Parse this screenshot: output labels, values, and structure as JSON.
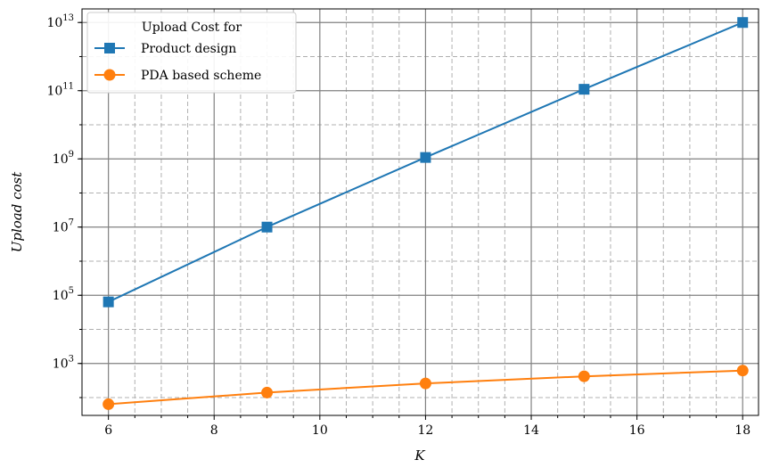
{
  "chart_data": {
    "type": "line",
    "x_scale": "linear",
    "y_scale": "log",
    "xlabel": "K",
    "ylabel": "Upload cost",
    "xlim": [
      5.5,
      18.3
    ],
    "ylim": [
      30,
      25000000000000
    ],
    "x_ticks": [
      6,
      8,
      10,
      12,
      14,
      16,
      18
    ],
    "y_ticks": [
      {
        "value": 1000,
        "base": "10",
        "exp": "3"
      },
      {
        "value": 100000,
        "base": "10",
        "exp": "5"
      },
      {
        "value": 10000000,
        "base": "10",
        "exp": "7"
      },
      {
        "value": 1000000000,
        "base": "10",
        "exp": "9"
      },
      {
        "value": 100000000000,
        "base": "10",
        "exp": "11"
      },
      {
        "value": 10000000000000,
        "base": "10",
        "exp": "13"
      }
    ],
    "grid": "major solid, minor dashed",
    "legend": {
      "title": "Upload Cost for",
      "placement": "top-left"
    },
    "series": [
      {
        "name": "Product design",
        "color": "#1f77b4",
        "marker": "square",
        "x": [
          6,
          9,
          12,
          15,
          18
        ],
        "y": [
          64000,
          10000000,
          1100000000,
          110000000000,
          10000000000000
        ]
      },
      {
        "name": "PDA based scheme",
        "color": "#ff7f0e",
        "marker": "circle",
        "x": [
          6,
          9,
          12,
          15,
          18
        ],
        "y": [
          64,
          140,
          260,
          420,
          620
        ]
      }
    ]
  }
}
